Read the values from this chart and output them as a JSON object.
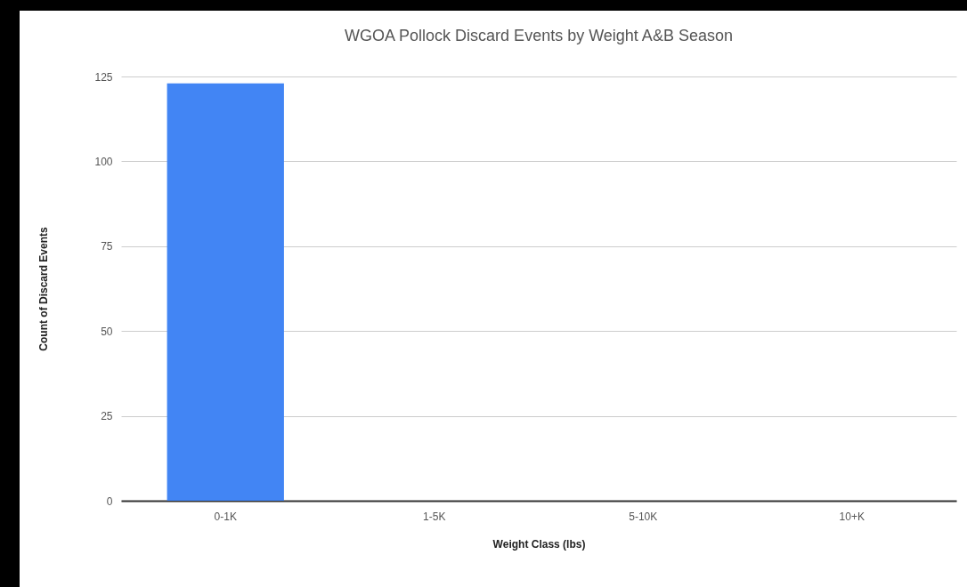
{
  "chart_data": {
    "type": "bar",
    "title": "WGOA Pollock Discard Events by Weight A&B Season",
    "xlabel": "Weight Class (lbs)",
    "ylabel": "Count of Discard Events",
    "categories": [
      "0-1K",
      "1-5K",
      "5-10K",
      "10+K"
    ],
    "values": [
      123,
      0,
      0,
      0
    ],
    "color": "#4285f4",
    "ylim": [
      0,
      125
    ],
    "yticks": [
      0,
      25,
      50,
      75,
      100,
      125
    ],
    "grid": "y"
  }
}
